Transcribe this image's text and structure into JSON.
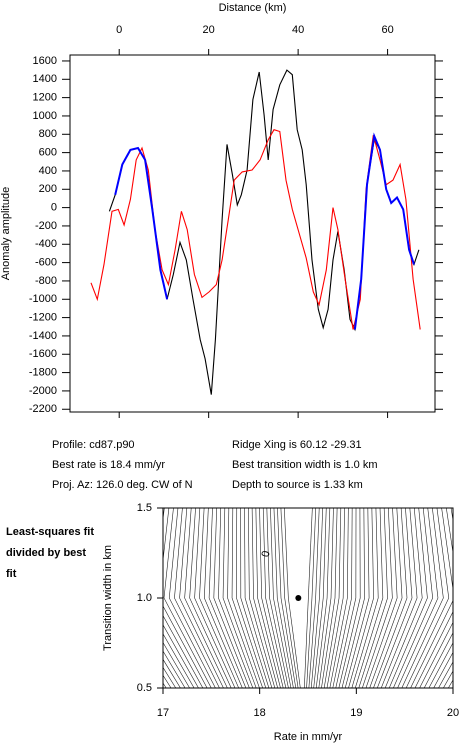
{
  "chart_data": [
    {
      "type": "line",
      "xlabel": "Distance (km)",
      "ylabel": "Anomaly amplitude",
      "xlim": [
        -11,
        70.6
      ],
      "xticks": [
        0,
        20,
        40,
        60
      ],
      "ylim": [
        -2230,
        1665
      ],
      "yticks": [
        -2200,
        -2000,
        -1800,
        -1600,
        -1400,
        -1200,
        -1000,
        -800,
        -600,
        -400,
        -200,
        0,
        200,
        400,
        600,
        800,
        1000,
        1200,
        1400,
        1600
      ],
      "series": [
        {
          "color": "#000000",
          "x": [
            -2.2,
            -0.9,
            0.7,
            2.5,
            4.2,
            5.8,
            7.4,
            9.2,
            10.7,
            12.1,
            13.6,
            15.0,
            16.5,
            18.1,
            19.2,
            20.6,
            21.5,
            23.0,
            24.1,
            25.3,
            26.4,
            27.3,
            28.6,
            29.9,
            31.3,
            32.4,
            33.3,
            34.4,
            35.9,
            37.5,
            38.7,
            39.8,
            40.9,
            41.8,
            43.1,
            44.5,
            45.6,
            46.7,
            47.8,
            48.9,
            50.3,
            51.6,
            52.7,
            54.1,
            55.4,
            57.0,
            58.3,
            59.7,
            60.8,
            62.1,
            63.5,
            64.8,
            65.9,
            67.0
          ],
          "values": [
            -40,
            140,
            470,
            630,
            650,
            520,
            -20,
            -680,
            -1000,
            -730,
            -380,
            -570,
            -1000,
            -1440,
            -1650,
            -2040,
            -1440,
            -130,
            690,
            360,
            30,
            140,
            410,
            1180,
            1480,
            1010,
            520,
            1070,
            1340,
            1500,
            1450,
            850,
            630,
            250,
            -570,
            -1110,
            -1310,
            -1110,
            -570,
            -260,
            -680,
            -1220,
            -1330,
            -780,
            250,
            740,
            630,
            200,
            50,
            110,
            -20,
            -460,
            -620,
            -460
          ]
        },
        {
          "color": "#ff0000",
          "x": [
            -6.3,
            -4.9,
            -3.4,
            -1.6,
            -0.2,
            1.1,
            2.5,
            3.8,
            5.1,
            6.5,
            8.0,
            9.6,
            11.0,
            12.5,
            13.9,
            15.2,
            16.8,
            18.5,
            20.1,
            21.7,
            23.0,
            24.4,
            25.7,
            27.5,
            29.7,
            31.5,
            33.3,
            34.6,
            35.9,
            37.3,
            38.7,
            40.0,
            41.8,
            43.4,
            44.7,
            46.3,
            47.8,
            48.9,
            50.5,
            52.3,
            53.9,
            55.2,
            56.8,
            58.3,
            59.7,
            61.2,
            62.8,
            64.1,
            65.7,
            67.3
          ],
          "values": [
            -820,
            -1000,
            -620,
            -40,
            -20,
            -190,
            90,
            520,
            650,
            410,
            -240,
            -680,
            -840,
            -460,
            -40,
            -240,
            -730,
            -980,
            -920,
            -840,
            -570,
            -130,
            300,
            390,
            410,
            520,
            740,
            850,
            830,
            300,
            -20,
            -240,
            -550,
            -920,
            -1060,
            -680,
            0,
            -240,
            -780,
            -1330,
            -1000,
            200,
            790,
            520,
            250,
            300,
            470,
            90,
            -780,
            -1330
          ]
        },
        {
          "color": "#0000ff",
          "x": [
            -0.9,
            0.7,
            2.5,
            4.2,
            5.8,
            7.4,
            9.2,
            10.7,
            null,
            52.7,
            54.1,
            55.4,
            57.0,
            58.3,
            59.7,
            60.8,
            62.1,
            63.5,
            64.8,
            65.9
          ],
          "values": [
            140,
            470,
            630,
            650,
            520,
            -20,
            -680,
            -1000,
            null,
            -1330,
            -780,
            250,
            780,
            630,
            200,
            50,
            110,
            -20,
            -460,
            -620
          ]
        }
      ],
      "annotations": [
        "Profile: cd87.p90",
        "Best rate is 18.4 mm/yr",
        "Proj. Az: 126.0 deg. CW of N",
        "Ridge Xing is 60.12 -29.31",
        "Best transition width is 1.0 km",
        "Depth to source is   1.33 km"
      ]
    },
    {
      "type": "contour",
      "title": "Least-squares fit divided by best fit",
      "xlabel": "Rate in mm/yr",
      "ylabel": "Transition width in km",
      "xlim": [
        17,
        20
      ],
      "xticks": [
        17,
        18,
        19,
        20
      ],
      "ylim": [
        0.5,
        1.5
      ],
      "yticks": [
        0.5,
        {
          "value": 1,
          "label": "1.0"
        },
        1.5
      ],
      "best": {
        "x": 18.4,
        "y": 1.0
      },
      "contour_label": "0"
    }
  ]
}
